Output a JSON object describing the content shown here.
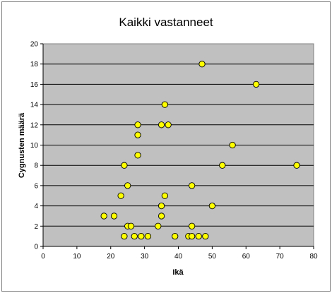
{
  "chart_data": {
    "type": "scatter",
    "title": "Kaikki vastanneet",
    "xlabel": "Ikä",
    "ylabel": "Cygnusten määrä",
    "xlim": [
      0,
      80
    ],
    "ylim": [
      0,
      20
    ],
    "x_ticks": [
      "0",
      "10",
      "20",
      "30",
      "40",
      "50",
      "60",
      "70",
      "80"
    ],
    "y_ticks": [
      "0",
      "2",
      "4",
      "6",
      "8",
      "10",
      "12",
      "14",
      "16",
      "18",
      "20"
    ],
    "grid": "horizontal",
    "legend": "none",
    "marker_color": "#ffff00",
    "plot_background": "#c0c0c0",
    "series": [
      {
        "points": [
          [
            47,
            18
          ],
          [
            63,
            16
          ],
          [
            36,
            14
          ],
          [
            28,
            12
          ],
          [
            35,
            12
          ],
          [
            37,
            12
          ],
          [
            28,
            11
          ],
          [
            56,
            10
          ],
          [
            28,
            9
          ],
          [
            24,
            8
          ],
          [
            53,
            8
          ],
          [
            75,
            8
          ],
          [
            25,
            6
          ],
          [
            44,
            6
          ],
          [
            23,
            5
          ],
          [
            36,
            5
          ],
          [
            35,
            4
          ],
          [
            50,
            4
          ],
          [
            18,
            3
          ],
          [
            21,
            3
          ],
          [
            35,
            3
          ],
          [
            25,
            2
          ],
          [
            26,
            2
          ],
          [
            44,
            2
          ],
          [
            24,
            1
          ],
          [
            27,
            1
          ],
          [
            29,
            1
          ],
          [
            31,
            1
          ],
          [
            39,
            1
          ],
          [
            43,
            1
          ],
          [
            44,
            1
          ],
          [
            46,
            1
          ],
          [
            48,
            1
          ],
          [
            34,
            2
          ]
        ]
      }
    ]
  }
}
